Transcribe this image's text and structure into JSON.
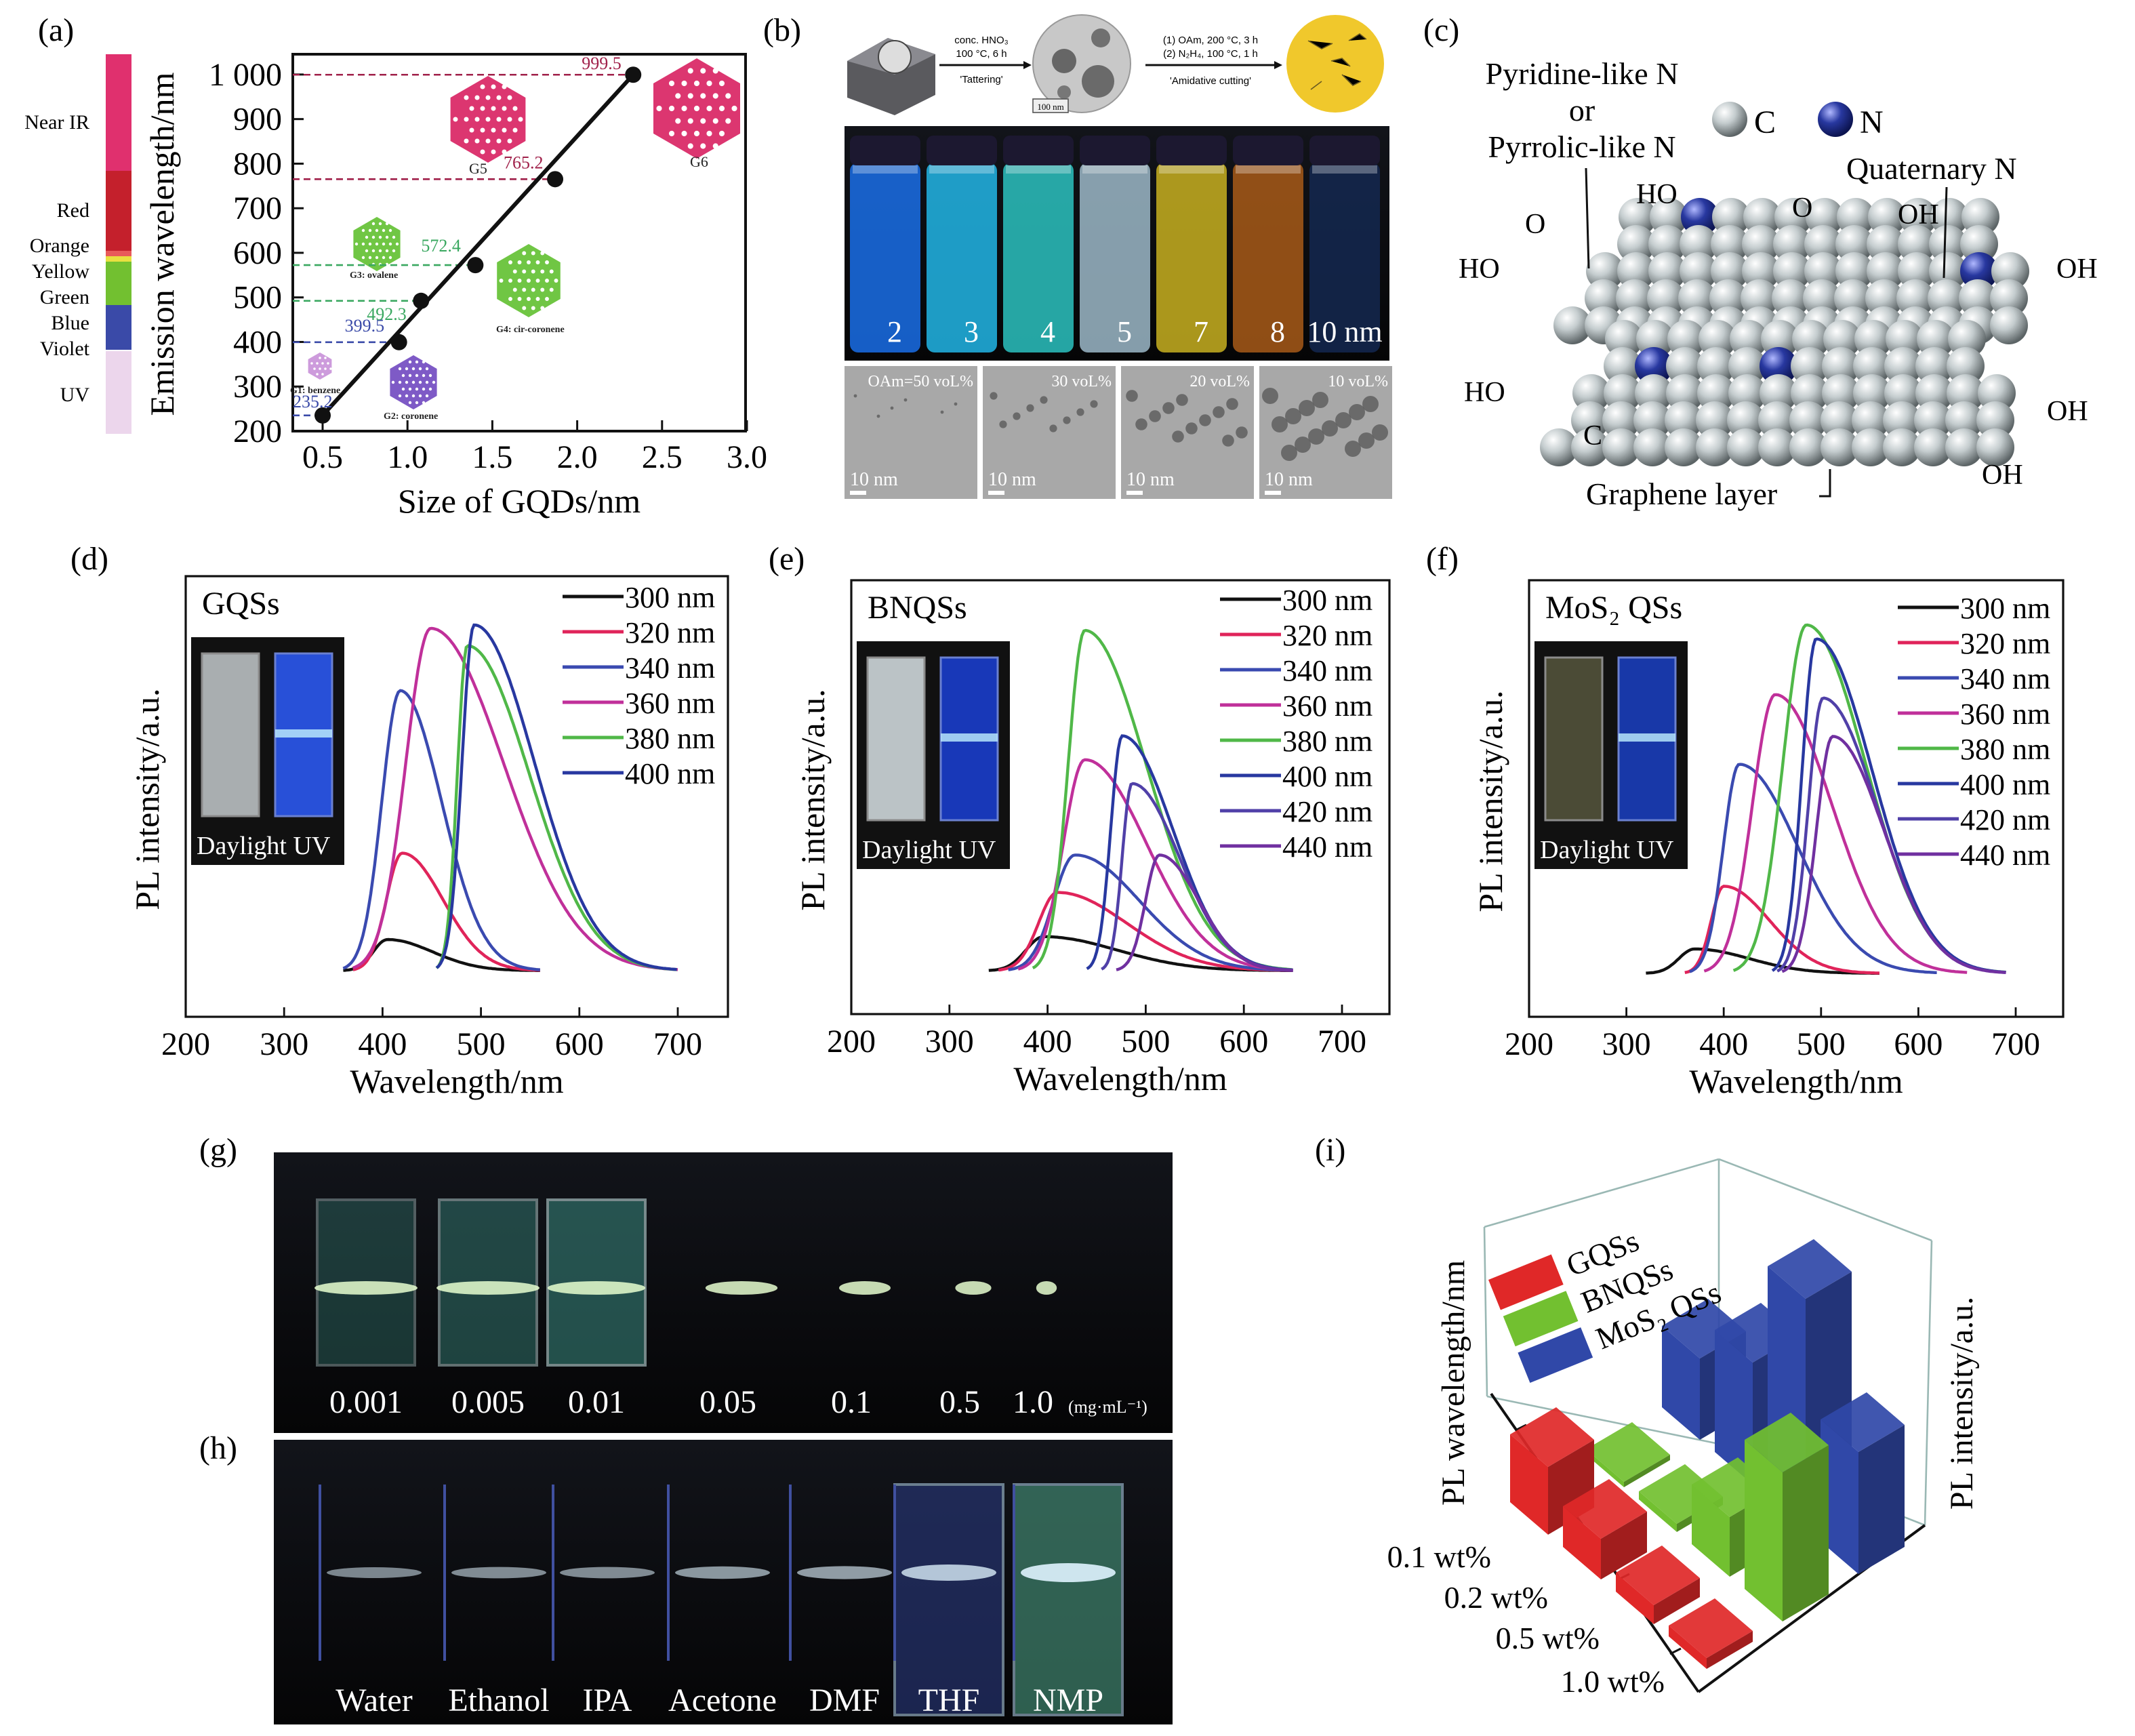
{
  "panel_labels": {
    "a": "(a)",
    "b": "(b)",
    "c": "(c)",
    "d": "(d)",
    "e": "(e)",
    "f": "(f)",
    "g": "(g)",
    "h": "(h)",
    "i": "(i)"
  },
  "colors": {
    "near_ir": "#e0306e",
    "red": "#c4202c",
    "orange": "#e85a5a",
    "yellow": "#e8e040",
    "green": "#72c030",
    "blue": "#3a4aa8",
    "uv": "#ecd6ec",
    "photo_bg": "#0a0a0e",
    "sphere": "#c8d0d2",
    "nitrogen": "#2838a0"
  },
  "panel_b": {
    "step1": [
      "conc. HNO₃",
      "100 °C, 6 h",
      "'Tattering'"
    ],
    "step1_scale": "100 nm",
    "step2": [
      "(1) OAm, 200 °C, 3 h",
      "(2) N₂H₄, 100 °C, 1 h",
      "'Amidative cutting'"
    ],
    "vials": [
      {
        "label": "2",
        "color": "#1a6ee8"
      },
      {
        "label": "3",
        "color": "#22b6e6"
      },
      {
        "label": "4",
        "color": "#2cc2c0"
      },
      {
        "label": "5",
        "color": "#9cb8c8"
      },
      {
        "label": "7",
        "color": "#c8b020"
      },
      {
        "label": "8",
        "color": "#a85a18"
      },
      {
        "label": "10 nm",
        "color": "#142850"
      }
    ],
    "tem": [
      {
        "label": "OAm=50 voL%",
        "scale": "10 nm"
      },
      {
        "label": "30 voL%",
        "scale": "10 nm"
      },
      {
        "label": "20 voL%",
        "scale": "10 nm"
      },
      {
        "label": "10 voL%",
        "scale": "10 nm"
      }
    ]
  },
  "panel_c": {
    "pyridine": [
      "Pyridine-like N",
      "or",
      "Pyrrolic-like N"
    ],
    "legend_c": "C",
    "legend_n": "N",
    "quaternary": "Quaternary N",
    "groups": {
      "ho1": "HO",
      "o1": "O",
      "oh1": "OH",
      "cooh_left1": "HO",
      "cooh_left2": "HO",
      "cooh_right1": "OH",
      "cooh_right2": "OH",
      "cooh_right3": "OH",
      "c": "C",
      "o": "O"
    },
    "graphene": "Graphene layer"
  },
  "panel_g": {
    "labels": [
      "0.001",
      "0.005",
      "0.01",
      "0.05",
      "0.1",
      "0.5",
      "1.0"
    ],
    "unit": "(mg·mL⁻¹)"
  },
  "panel_h": {
    "labels": [
      "Water",
      "Ethanol",
      "IPA",
      "Acetone",
      "DMF",
      "THF",
      "NMP"
    ],
    "glow": [
      0.25,
      0.3,
      0.3,
      0.4,
      0.45,
      0.75,
      1.0
    ]
  },
  "chart_data": [
    {
      "id": "a",
      "type": "scatter",
      "xlabel": "Size of GQDs/nm",
      "ylabel": "Emission wavelength/nm",
      "xlim": [
        0.33,
        3.0
      ],
      "ylim": [
        200,
        1045
      ],
      "xticks": [
        "0.5",
        "1.0",
        "1.5",
        "2.0",
        "2.5",
        "3.0"
      ],
      "yticks": [
        {
          "v": 200,
          "t": "200"
        },
        {
          "v": 300,
          "t": "300"
        },
        {
          "v": 400,
          "t": "400"
        },
        {
          "v": 500,
          "t": "500"
        },
        {
          "v": 600,
          "t": "600"
        },
        {
          "v": 700,
          "t": "700"
        },
        {
          "v": 800,
          "t": "800"
        },
        {
          "v": 900,
          "t": "900"
        },
        {
          "v": 1000,
          "t": "1 000"
        }
      ],
      "points": [
        {
          "x": 0.5,
          "y": 235.2,
          "label": "235.2",
          "color": "#3a4aa8"
        },
        {
          "x": 0.95,
          "y": 399.5,
          "label": "399.5",
          "color": "#3a4aa8"
        },
        {
          "x": 1.08,
          "y": 492.3,
          "label": "492.3",
          "color": "#3aa860"
        },
        {
          "x": 1.4,
          "y": 572.4,
          "label": "572.4",
          "color": "#3aa860"
        },
        {
          "x": 1.87,
          "y": 765.2,
          "label": "765.2",
          "color": "#a0204a"
        },
        {
          "x": 2.33,
          "y": 999.5,
          "label": "999.5",
          "color": "#a0204a"
        }
      ],
      "fit_line": true,
      "spectrum_bands": [
        {
          "name": "Near IR",
          "color": "#e0306e"
        },
        {
          "name": "Red",
          "color": "#c4202c"
        },
        {
          "name": "Orange",
          "color": "#e85a5a"
        },
        {
          "name": "Yellow",
          "color": "#e8e040"
        },
        {
          "name": "Green",
          "color": "#72c030"
        },
        {
          "name": "Blue",
          "color": "#3a4aa8"
        },
        {
          "name": "Violet",
          "color": "#3a4aa8"
        },
        {
          "name": "UV",
          "color": "#ecd6ec"
        }
      ],
      "structures": [
        {
          "label": "G1: benzene",
          "color": "#c890d8"
        },
        {
          "label": "G2: coronene",
          "color": "#7048c0"
        },
        {
          "label": "G3: ovalene",
          "color": "#60c030"
        },
        {
          "label": "G4: cir-coronene",
          "color": "#60c030"
        },
        {
          "label": "G5",
          "color": "#d82060"
        },
        {
          "label": "G6",
          "color": "#d82060"
        }
      ]
    },
    {
      "id": "d",
      "type": "line",
      "title": "GQSs",
      "xlabel": "Wavelength/nm",
      "ylabel": "PL intensity/a.u.",
      "xlim": [
        200,
        750
      ],
      "xticks": [
        "200",
        "300",
        "400",
        "500",
        "600",
        "700"
      ],
      "inset": "Daylight UV",
      "series": [
        {
          "name": "300 nm",
          "color": "#111111",
          "start": 360,
          "peak_nm": 405,
          "peak_intensity": 0.09,
          "end": 560
        },
        {
          "name": "320 nm",
          "color": "#e0245a",
          "start": 370,
          "peak_nm": 420,
          "peak_intensity": 0.34,
          "end": 560
        },
        {
          "name": "340 nm",
          "color": "#3a4ab0",
          "start": 360,
          "peak_nm": 418,
          "peak_intensity": 0.81,
          "end": 560
        },
        {
          "name": "360 nm",
          "color": "#c0309a",
          "start": 370,
          "peak_nm": 449,
          "peak_intensity": 0.99,
          "end": 700
        },
        {
          "name": "380 nm",
          "color": "#50b848",
          "start": 455,
          "peak_nm": 486,
          "peak_intensity": 0.94,
          "end": 700
        },
        {
          "name": "400 nm",
          "color": "#2838a0",
          "start": 455,
          "peak_nm": 493,
          "peak_intensity": 1.0,
          "end": 700
        }
      ]
    },
    {
      "id": "e",
      "type": "line",
      "title": "BNQSs",
      "xlabel": "Wavelength/nm",
      "ylabel": "PL intensity/a.u.",
      "xlim": [
        200,
        750
      ],
      "xticks": [
        "200",
        "300",
        "400",
        "500",
        "600",
        "700"
      ],
      "inset": "Daylight UV",
      "series": [
        {
          "name": "300 nm",
          "color": "#111111",
          "start": 340,
          "peak_nm": 396,
          "peak_intensity": 0.1,
          "end": 650
        },
        {
          "name": "320 nm",
          "color": "#e0245a",
          "start": 350,
          "peak_nm": 410,
          "peak_intensity": 0.23,
          "end": 650
        },
        {
          "name": "340 nm",
          "color": "#3a4ab0",
          "start": 360,
          "peak_nm": 428,
          "peak_intensity": 0.34,
          "end": 650
        },
        {
          "name": "360 nm",
          "color": "#c0309a",
          "start": 370,
          "peak_nm": 438,
          "peak_intensity": 0.62,
          "end": 650
        },
        {
          "name": "380 nm",
          "color": "#50b848",
          "start": 385,
          "peak_nm": 438,
          "peak_intensity": 1.0,
          "end": 650
        },
        {
          "name": "400 nm",
          "color": "#2838a0",
          "start": 440,
          "peak_nm": 476,
          "peak_intensity": 0.69,
          "end": 650
        },
        {
          "name": "420 nm",
          "color": "#5040a8",
          "start": 455,
          "peak_nm": 486,
          "peak_intensity": 0.55,
          "end": 650
        },
        {
          "name": "440 nm",
          "color": "#7030a0",
          "start": 470,
          "peak_nm": 514,
          "peak_intensity": 0.34,
          "end": 650
        }
      ]
    },
    {
      "id": "f",
      "type": "line",
      "title": "MoS₂ QSs",
      "xlabel": "Wavelength/nm",
      "ylabel": "PL intensity/a.u.",
      "xlim": [
        200,
        750
      ],
      "xticks": [
        "200",
        "300",
        "400",
        "500",
        "600",
        "700"
      ],
      "inset": "Daylight UV",
      "series": [
        {
          "name": "300 nm",
          "color": "#111111",
          "start": 320,
          "peak_nm": 370,
          "peak_intensity": 0.07,
          "end": 560
        },
        {
          "name": "320 nm",
          "color": "#e0245a",
          "start": 360,
          "peak_nm": 400,
          "peak_intensity": 0.25,
          "end": 560
        },
        {
          "name": "340 nm",
          "color": "#3a4ab0",
          "start": 365,
          "peak_nm": 416,
          "peak_intensity": 0.6,
          "end": 620
        },
        {
          "name": "360 nm",
          "color": "#c0309a",
          "start": 380,
          "peak_nm": 453,
          "peak_intensity": 0.8,
          "end": 650
        },
        {
          "name": "380 nm",
          "color": "#50b848",
          "start": 410,
          "peak_nm": 485,
          "peak_intensity": 1.0,
          "end": 690
        },
        {
          "name": "400 nm",
          "color": "#2838a0",
          "start": 450,
          "peak_nm": 495,
          "peak_intensity": 0.96,
          "end": 690
        },
        {
          "name": "420 nm",
          "color": "#5040a8",
          "start": 455,
          "peak_nm": 502,
          "peak_intensity": 0.79,
          "end": 690
        },
        {
          "name": "440 nm",
          "color": "#7030a0",
          "start": 460,
          "peak_nm": 512,
          "peak_intensity": 0.68,
          "end": 690
        }
      ]
    },
    {
      "id": "i",
      "type": "bar3d",
      "xlabel": "",
      "ylabel": "PL wavelength/nm",
      "zlabel": "PL intensity/a.u.",
      "categories": [
        "0.1 wt%",
        "0.2 wt%",
        "0.5 wt%",
        "1.0 wt%"
      ],
      "series": [
        {
          "name": "GQSs",
          "color": "#e02828",
          "values": [
            0.25,
            0.15,
            0.07,
            0.04
          ]
        },
        {
          "name": "BNQSs",
          "color": "#72c030",
          "values": [
            0.02,
            0.03,
            0.22,
            0.55
          ]
        },
        {
          "name": "MoS₂ QSs",
          "color": "#3048a8",
          "values": [
            0.3,
            0.45,
            0.85,
            0.45
          ]
        }
      ],
      "legend": "top-left"
    }
  ]
}
